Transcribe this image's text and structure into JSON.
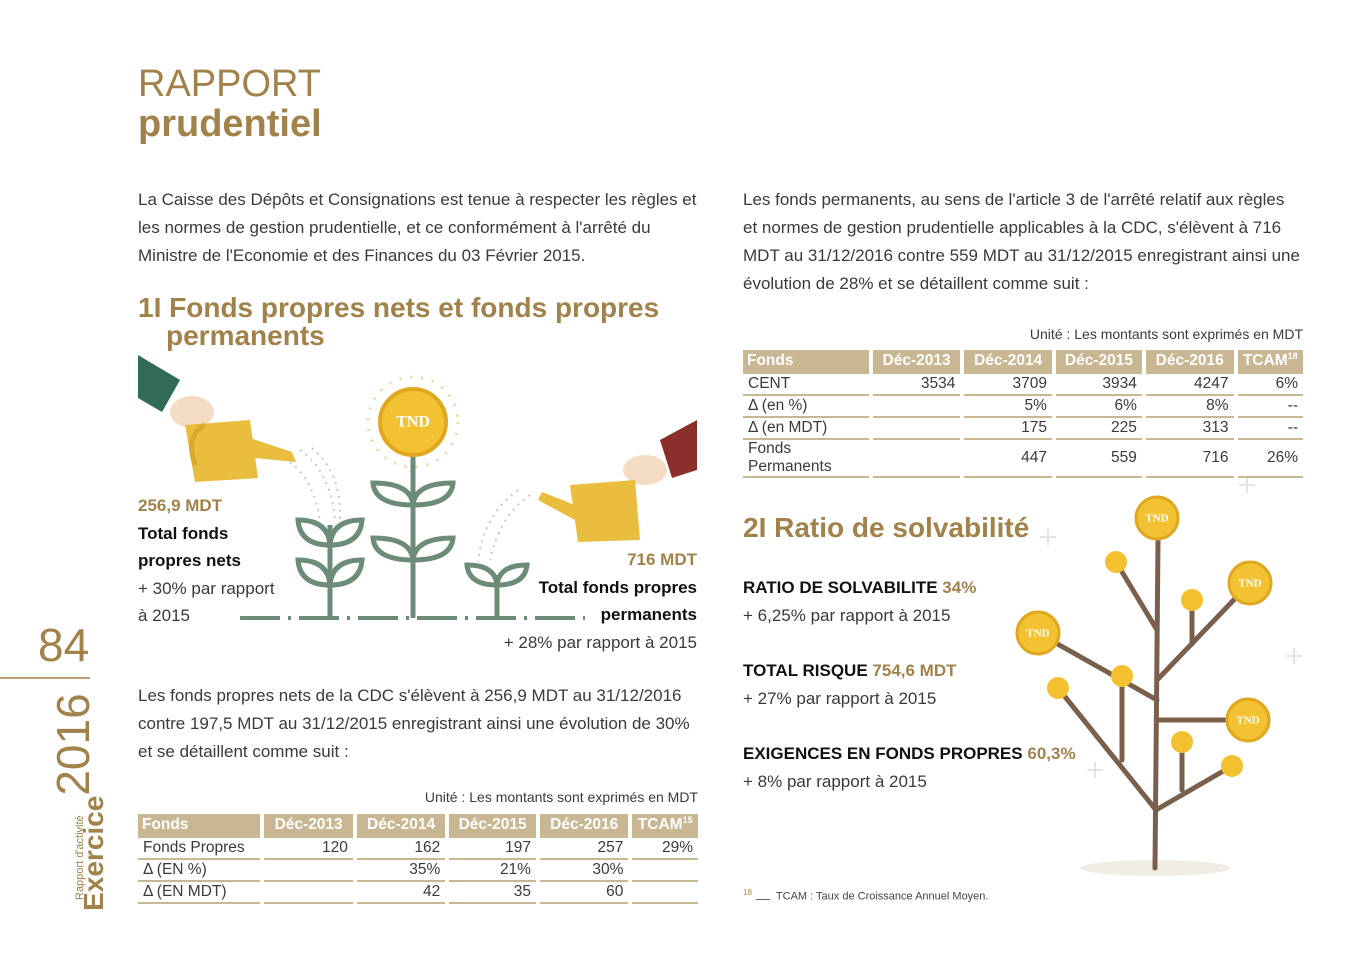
{
  "header": {
    "title_line1": "RAPPORT",
    "title_line2": "prudentiel"
  },
  "sidebar": {
    "page_number": "84",
    "caption": "Rapport d'activité",
    "label": "Exercice",
    "year": "2016"
  },
  "intro": "La Caisse des Dépôts et Consignations est tenue à respecter les règles et les normes de gestion prudentielle, et ce conformément à l'arrêté du Ministre de l'Economie et des Finances du 03 Février 2015.",
  "section1": {
    "heading": "1I Fonds propres nets et fonds propres permanents",
    "infographic": {
      "coin_label": "TND",
      "left": {
        "amount": "256,9 MDT",
        "label": "Total fonds propres nets",
        "change": "+ 30% par rapport à 2015"
      },
      "right": {
        "amount": "716 MDT",
        "label": "Total fonds propres permanents",
        "change": "+ 28% par rapport à 2015"
      }
    },
    "paragraph": "Les fonds propres nets de la CDC s'élèvent à 256,9 MDT au 31/12/2016 contre 197,5 MDT au 31/12/2015 enregistrant ainsi une évolution de 30% et se détaillent comme suit :",
    "table": {
      "unit": "Unité : Les montants sont exprimés en MDT",
      "columns": [
        "Fonds",
        "Déc-2013",
        "Déc-2014",
        "Déc-2015",
        "Déc-2016",
        "TCAM"
      ],
      "footnote_ref": "15",
      "rows": [
        [
          "Fonds Propres",
          "120",
          "162",
          "197",
          "257",
          "29%"
        ],
        [
          "Δ (EN %)",
          null,
          "35%",
          "21%",
          "30%",
          null
        ],
        [
          "Δ (EN MDT)",
          null,
          "42",
          "35",
          "60",
          null
        ]
      ]
    }
  },
  "permanent_funds": {
    "paragraph": "Les fonds permanents, au sens de l'article 3 de l'arrêté relatif aux règles et normes de gestion prudentielle applicables à la CDC, s'élèvent à 716 MDT au 31/12/2016 contre 559 MDT au 31/12/2015 enregistrant ainsi une évolution de 28% et se détaillent comme suit :",
    "table": {
      "unit": "Unité : Les montants sont exprimés en MDT",
      "columns": [
        "Fonds",
        "Déc-2013",
        "Déc-2014",
        "Déc-2015",
        "Déc-2016",
        "TCAM"
      ],
      "footnote_ref": "18",
      "rows": [
        [
          "CENT",
          "3534",
          "3709",
          "3934",
          "4247",
          "6%"
        ],
        [
          "Δ (en %)",
          null,
          "5%",
          "6%",
          "8%",
          "--"
        ],
        [
          "Δ (en MDT)",
          null,
          "175",
          "225",
          "313",
          "--"
        ],
        [
          "Fonds Permanents",
          null,
          "447",
          "559",
          "716",
          "26%"
        ]
      ]
    }
  },
  "solvency": {
    "heading": "2I Ratio de solvabilité",
    "items": [
      {
        "label": "RATIO DE SOLVABILITE",
        "value": "34%",
        "note": "+ 6,25% par rapport à 2015"
      },
      {
        "label": "TOTAL RISQUE",
        "value": "754,6 MDT",
        "note": "+ 27% par rapport à 2015"
      },
      {
        "label": "EXIGENCES EN FONDS PROPRES",
        "value": "60,3%",
        "note": "+ 8% par rapport à 2015"
      }
    ]
  },
  "footnote": {
    "number": "18",
    "text": "TCAM : Taux de Croissance Annuel Moyen."
  }
}
